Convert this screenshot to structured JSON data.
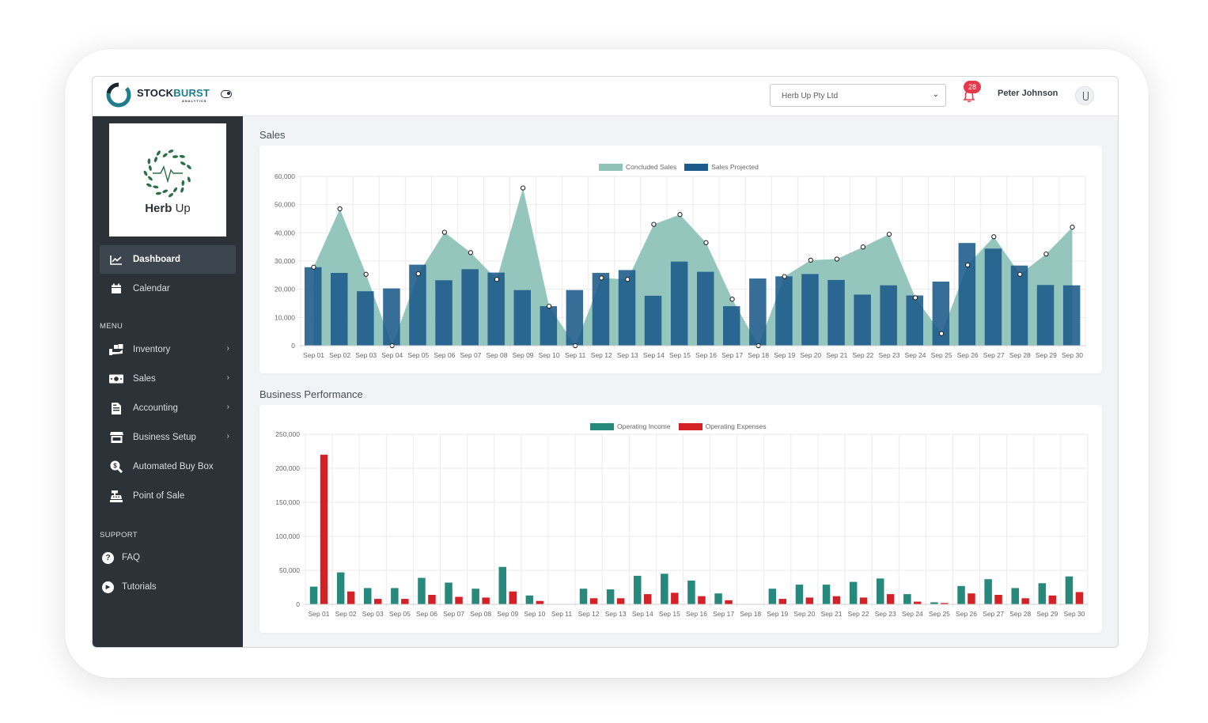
{
  "brand": {
    "name_a": "STOCK",
    "name_b": "BURST",
    "tagline": "ANALYTICS"
  },
  "header": {
    "company_select": "Herb Up Pty Ltd",
    "notification_count": "28",
    "user_name": "Peter Johnson"
  },
  "client": {
    "name_bold": "Herb",
    "name_light": "Up"
  },
  "sidebar": {
    "main": [
      {
        "label": "Dashboard",
        "icon": "chart-line-icon",
        "active": true
      },
      {
        "label": "Calendar",
        "icon": "calendar-icon"
      }
    ],
    "menu_heading": "MENU",
    "menu": [
      {
        "label": "Inventory",
        "icon": "inventory-icon",
        "has_children": true
      },
      {
        "label": "Sales",
        "icon": "money-icon",
        "has_children": true
      },
      {
        "label": "Accounting",
        "icon": "file-invoice-icon",
        "has_children": true
      },
      {
        "label": "Business Setup",
        "icon": "store-icon",
        "has_children": true
      },
      {
        "label": "Automated Buy Box",
        "icon": "search-dollar-icon"
      },
      {
        "label": "Point of Sale",
        "icon": "cash-register-icon"
      }
    ],
    "support_heading": "SUPPORT",
    "support": [
      {
        "label": "FAQ",
        "icon": "question-circle-icon"
      },
      {
        "label": "Tutorials",
        "icon": "play-circle-icon"
      }
    ]
  },
  "sales": {
    "title": "Sales",
    "chart_data": {
      "type": "bar",
      "categories": [
        "Sep 01",
        "Sep 02",
        "Sep 03",
        "Sep 04",
        "Sep 05",
        "Sep 06",
        "Sep 07",
        "Sep 08",
        "Sep 09",
        "Sep 10",
        "Sep 11",
        "Sep 12",
        "Sep 13",
        "Sep 14",
        "Sep 15",
        "Sep 16",
        "Sep 17",
        "Sep 18",
        "Sep 19",
        "Sep 20",
        "Sep 21",
        "Sep 22",
        "Sep 23",
        "Sep 24",
        "Sep 25",
        "Sep 26",
        "Sep 27",
        "Sep 28",
        "Sep 29",
        "Sep 30"
      ],
      "series": [
        {
          "name": "Concluded Sales",
          "type": "area",
          "color": "#8fc3ba",
          "values": [
            27800,
            48500,
            25300,
            0,
            25500,
            40200,
            33000,
            23500,
            55900,
            14000,
            0,
            24000,
            23500,
            43000,
            46500,
            36500,
            16500,
            0,
            24500,
            30300,
            30700,
            35000,
            39500,
            17000,
            4300,
            28600,
            38600,
            25300,
            32500,
            42000
          ]
        },
        {
          "name": "Sales Projected",
          "type": "bar",
          "color": "#1b5a8a",
          "values": [
            27800,
            25800,
            19300,
            20300,
            28700,
            23200,
            27100,
            25900,
            19700,
            14000,
            19700,
            25800,
            26800,
            17700,
            29800,
            26200,
            14000,
            23800,
            24600,
            25400,
            23300,
            18100,
            21400,
            17800,
            22700,
            36400,
            34400,
            28400,
            21500,
            21400
          ]
        }
      ],
      "ylim": [
        0,
        60000
      ],
      "yticks": [
        "0",
        "10,000",
        "20,000",
        "30,000",
        "40,000",
        "50,000",
        "60,000"
      ],
      "grid": true,
      "legend": "top-center"
    }
  },
  "performance": {
    "title": "Business Performance",
    "chart_data": {
      "type": "bar",
      "categories": [
        "Sep 01",
        "Sep 02",
        "Sep 03",
        "Sep 05",
        "Sep 06",
        "Sep 07",
        "Sep 08",
        "Sep 09",
        "Sep 10",
        "Sep 11",
        "Sep 12",
        "Sep 13",
        "Sep 14",
        "Sep 15",
        "Sep 16",
        "Sep 17",
        "Sep 18",
        "Sep 19",
        "Sep 20",
        "Sep 21",
        "Sep 22",
        "Sep 23",
        "Sep 24",
        "Sep 25",
        "Sep 26",
        "Sep 27",
        "Sep 28",
        "Sep 29",
        "Sep 30"
      ],
      "series": [
        {
          "name": "Operating Income",
          "color": "#27897c",
          "values": [
            26000,
            47000,
            24000,
            24000,
            39000,
            32000,
            23000,
            55000,
            13000,
            0,
            23000,
            22000,
            42000,
            45000,
            35000,
            16000,
            0,
            23000,
            29000,
            29000,
            33000,
            38000,
            15000,
            3000,
            27000,
            37000,
            24000,
            31000,
            41000
          ]
        },
        {
          "name": "Operating Expenses",
          "color": "#d42027",
          "values": [
            220000,
            19000,
            8000,
            8000,
            14000,
            11000,
            10000,
            19000,
            5000,
            0,
            9000,
            9000,
            15000,
            17000,
            12000,
            6000,
            0,
            8000,
            10000,
            12000,
            10000,
            15000,
            4000,
            2000,
            16000,
            14000,
            9000,
            13000,
            18000
          ]
        }
      ],
      "ylim": [
        0,
        250000
      ],
      "yticks": [
        "0",
        "50,000",
        "100,000",
        "150,000",
        "200,000",
        "250,000"
      ],
      "grid": true,
      "legend": "top-center"
    }
  }
}
